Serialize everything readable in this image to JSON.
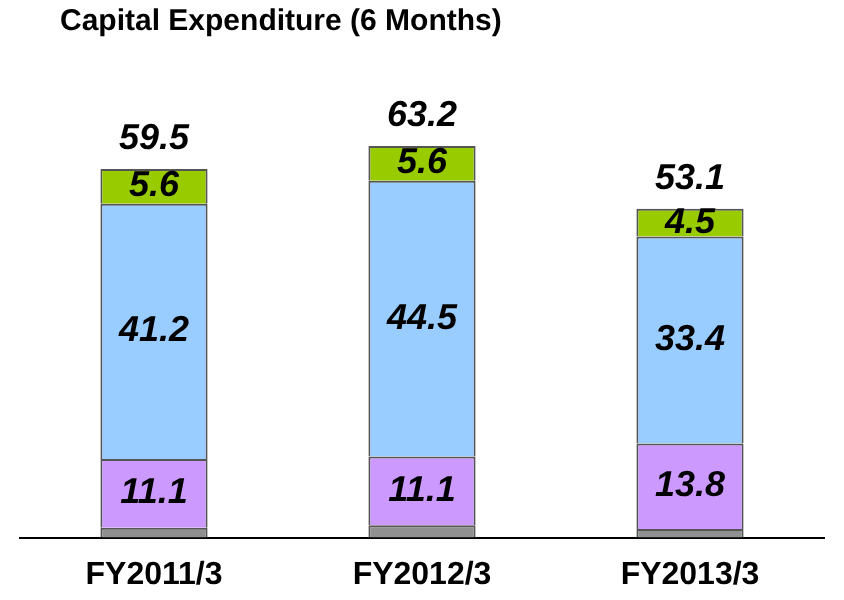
{
  "chart_data": {
    "type": "bar",
    "title": "Capital Expenditure (6 Months)",
    "categories": [
      "FY2011/3",
      "FY2012/3",
      "FY2013/3"
    ],
    "stacked": true,
    "legend": false,
    "grid": false,
    "series": [
      {
        "color": "#909090",
        "values": [
          1.6,
          2.0,
          1.4
        ],
        "value_labels": [
          null,
          null,
          null
        ]
      },
      {
        "color": "#cc99ff",
        "values": [
          11.1,
          11.1,
          13.8
        ],
        "value_labels": [
          "11.1",
          "11.1",
          "13.8"
        ]
      },
      {
        "color": "#99ccff",
        "values": [
          41.2,
          44.5,
          33.4
        ],
        "value_labels": [
          "41.2",
          "44.5",
          "33.4"
        ]
      },
      {
        "color": "#99cc00",
        "values": [
          5.6,
          5.6,
          4.5
        ],
        "value_labels": [
          "5.6",
          "5.6",
          "4.5"
        ]
      }
    ],
    "totals": [
      "59.5",
      "63.2",
      "53.1"
    ]
  }
}
